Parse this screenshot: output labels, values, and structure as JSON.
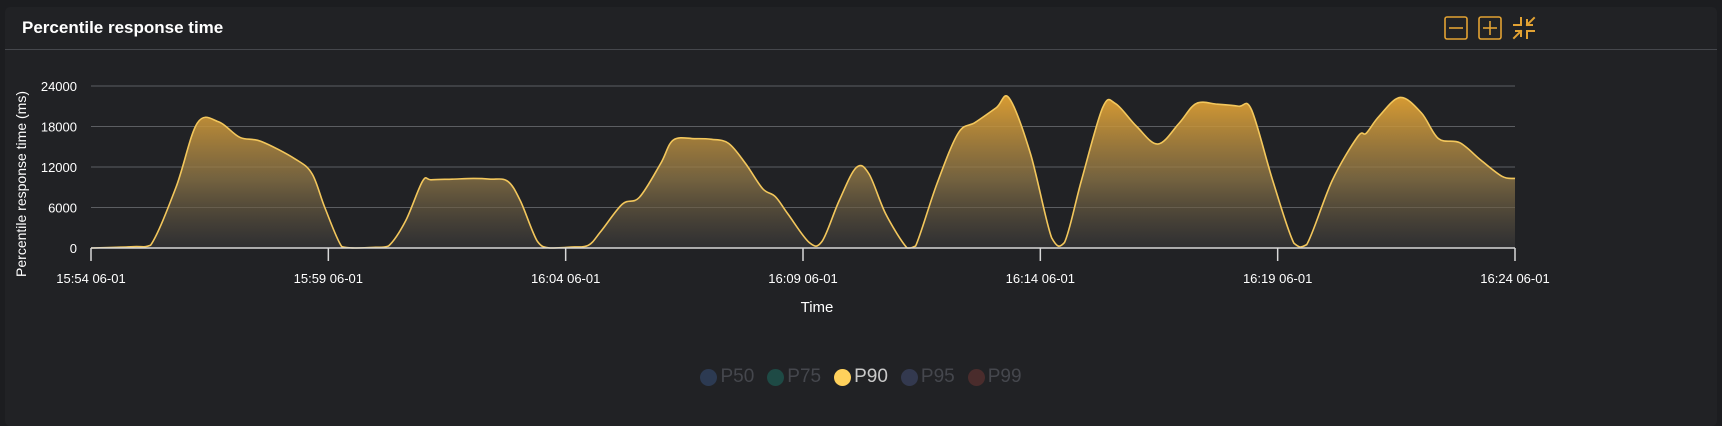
{
  "panel": {
    "title": "Percentile response time",
    "buttons": [
      {
        "name": "collapse-button",
        "icon": "minus-box-icon"
      },
      {
        "name": "expand-button",
        "icon": "plus-box-icon"
      },
      {
        "name": "fullscreen-exit-button",
        "icon": "collapse-arrows-icon"
      }
    ]
  },
  "colors": {
    "accent": "#e2a233",
    "series_line": "#f3c75c",
    "grid": "#5c5e62",
    "axis": "#d8d8d8",
    "text": "#ffffff"
  },
  "chart_data": {
    "type": "area",
    "ylabel": "Percentile response time (ms)",
    "xlabel": "Time",
    "yticks": [
      0,
      6000,
      12000,
      18000,
      24000
    ],
    "ylim": [
      0,
      24000
    ],
    "xticks": [
      "15:54 06-01",
      "15:59 06-01",
      "16:04 06-01",
      "16:09 06-01",
      "16:14 06-01",
      "16:19 06-01",
      "16:24 06-01"
    ],
    "xlim_minutes": [
      0,
      30
    ],
    "grid": true,
    "legend_position": "bottom-center",
    "series": [
      {
        "name": "P50",
        "color": "#2c3a52",
        "active": false,
        "points": []
      },
      {
        "name": "P75",
        "color": "#1e4a45",
        "active": false,
        "points": []
      },
      {
        "name": "P90",
        "color": "#ffd15c",
        "active": true,
        "points": [
          [
            0,
            0
          ],
          [
            1,
            200
          ],
          [
            1.4,
            400
          ],
          [
            2.0,
            9000
          ],
          [
            2.5,
            18500
          ],
          [
            3.0,
            18700
          ],
          [
            3.5,
            16400
          ],
          [
            4.0,
            15800
          ],
          [
            4.8,
            13200
          ],
          [
            5.2,
            11000
          ],
          [
            5.5,
            6000
          ],
          [
            5.9,
            200
          ],
          [
            6.2,
            0
          ],
          [
            6.5,
            50
          ],
          [
            6.7,
            100
          ],
          [
            7.0,
            300
          ],
          [
            7.4,
            4000
          ],
          [
            7.8,
            9900
          ],
          [
            8.0,
            10100
          ],
          [
            8.5,
            10200
          ],
          [
            9.0,
            10300
          ],
          [
            9.4,
            10200
          ],
          [
            9.8,
            9900
          ],
          [
            10.1,
            7000
          ],
          [
            10.5,
            1000
          ],
          [
            10.8,
            0
          ],
          [
            11.3,
            150
          ],
          [
            11.7,
            400
          ],
          [
            12.0,
            2500
          ],
          [
            12.5,
            6500
          ],
          [
            12.9,
            7500
          ],
          [
            13.4,
            12500
          ],
          [
            13.7,
            16000
          ],
          [
            14.2,
            16200
          ],
          [
            14.6,
            16100
          ],
          [
            15.0,
            15500
          ],
          [
            15.4,
            12500
          ],
          [
            15.8,
            8800
          ],
          [
            16.1,
            7600
          ],
          [
            16.4,
            5000
          ],
          [
            16.9,
            800
          ],
          [
            17.2,
            1000
          ],
          [
            17.6,
            7000
          ],
          [
            18.0,
            11900
          ],
          [
            18.3,
            11000
          ],
          [
            18.7,
            5000
          ],
          [
            19.2,
            0
          ],
          [
            19.4,
            300
          ],
          [
            19.9,
            9500
          ],
          [
            20.4,
            17000
          ],
          [
            20.8,
            18600
          ],
          [
            21.3,
            20800
          ],
          [
            21.6,
            22200
          ],
          [
            22.1,
            14000
          ],
          [
            22.6,
            1500
          ],
          [
            22.9,
            800
          ],
          [
            23.3,
            10000
          ],
          [
            23.8,
            20800
          ],
          [
            24.1,
            21400
          ],
          [
            24.6,
            18000
          ],
          [
            25.1,
            15400
          ],
          [
            25.6,
            18500
          ],
          [
            26.0,
            21400
          ],
          [
            26.5,
            21300
          ],
          [
            27.0,
            21000
          ],
          [
            27.3,
            20500
          ],
          [
            27.8,
            10000
          ],
          [
            28.3,
            700
          ],
          [
            28.6,
            500
          ],
          [
            29.2,
            10000
          ],
          [
            29.8,
            16500
          ],
          [
            30.0,
            17000
          ],
          [
            30.3,
            19500
          ],
          [
            30.8,
            22300
          ],
          [
            31.3,
            20000
          ],
          [
            31.7,
            16200
          ],
          [
            32.2,
            15600
          ],
          [
            32.7,
            13000
          ],
          [
            33.2,
            10600
          ],
          [
            33.5,
            10300
          ]
        ]
      },
      {
        "name": "P95",
        "color": "#33394f",
        "active": false,
        "points": []
      },
      {
        "name": "P99",
        "color": "#4a2c2c",
        "active": false,
        "points": []
      }
    ]
  }
}
